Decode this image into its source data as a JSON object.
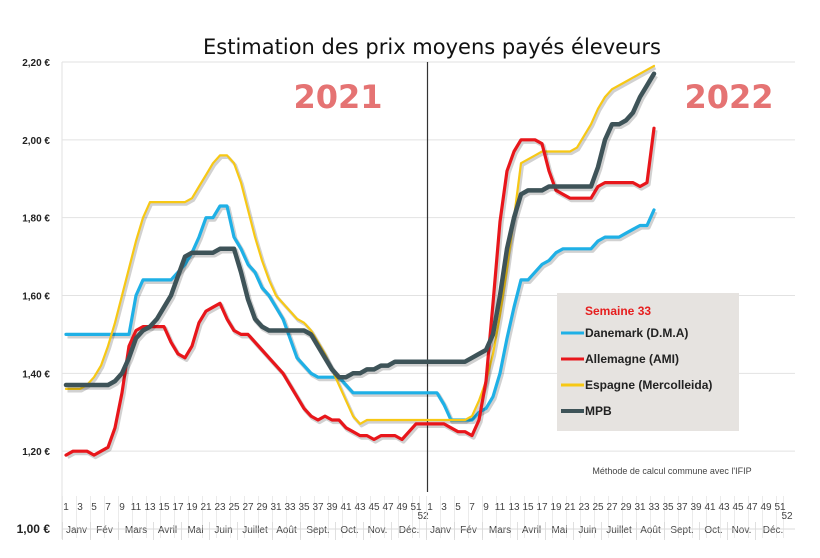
{
  "chart_data": {
    "type": "line",
    "title": "Estimation des prix moyens payés éleveurs",
    "xlabel": "",
    "ylabel": "",
    "ylim": [
      1.0,
      2.2
    ],
    "yticks": [
      "1,00 €",
      "1,20 €",
      "1,40 €",
      "1,60 €",
      "1,80 €",
      "2,00 €",
      "2,20 €"
    ],
    "ytick_values": [
      1.0,
      1.2,
      1.4,
      1.6,
      1.8,
      2.0,
      2.2
    ],
    "grid": true,
    "legend_position": "bottom-right",
    "legend_title": "Semaine 33",
    "year_labels": [
      "2021",
      "2022"
    ],
    "years": [
      {
        "label": "2021",
        "weeks": 52
      },
      {
        "label": "2022",
        "weeks": 52
      }
    ],
    "week_tick_labels": [
      "1",
      "3",
      "5",
      "7",
      "9",
      "11",
      "13",
      "15",
      "17",
      "19",
      "21",
      "23",
      "25",
      "27",
      "29",
      "31",
      "33",
      "35",
      "37",
      "39",
      "41",
      "43",
      "45",
      "47",
      "49",
      "51",
      "52"
    ],
    "months": [
      "Janv",
      "Fév",
      "Mars",
      "Avril",
      "Mai",
      "Juin",
      "Juillet",
      "Août",
      "Sept.",
      "Oct.",
      "Nov.",
      "Déc."
    ],
    "month_start_weeks": [
      1,
      5,
      9,
      14,
      18,
      22,
      26,
      31,
      35,
      40,
      44,
      48
    ],
    "note": "Méthode de calcul commune avec l'IFIP",
    "x_description": "Week index: 2021 weeks 1-52 followed by 2022 weeks 1-33",
    "series": [
      {
        "name": "Danemark (D.M.A)",
        "color": "#1fb0e6",
        "values_2021": [
          1.5,
          1.5,
          1.5,
          1.5,
          1.5,
          1.5,
          1.5,
          1.5,
          1.5,
          1.5,
          1.6,
          1.64,
          1.64,
          1.64,
          1.64,
          1.64,
          1.66,
          1.68,
          1.71,
          1.75,
          1.8,
          1.8,
          1.83,
          1.83,
          1.75,
          1.72,
          1.68,
          1.66,
          1.62,
          1.6,
          1.57,
          1.54,
          1.49,
          1.44,
          1.42,
          1.4,
          1.39,
          1.39,
          1.39,
          1.39,
          1.37,
          1.35,
          1.35,
          1.35,
          1.35,
          1.35,
          1.35,
          1.35,
          1.35,
          1.35,
          1.35,
          1.35
        ],
        "values_2022": [
          1.35,
          1.35,
          1.32,
          1.28,
          1.28,
          1.28,
          1.28,
          1.3,
          1.31,
          1.34,
          1.4,
          1.49,
          1.57,
          1.64,
          1.64,
          1.66,
          1.68,
          1.69,
          1.71,
          1.72,
          1.72,
          1.72,
          1.72,
          1.72,
          1.74,
          1.75,
          1.75,
          1.75,
          1.76,
          1.77,
          1.78,
          1.78,
          1.82
        ]
      },
      {
        "name": "Allemagne (AMI)",
        "color": "#e8161b",
        "values_2021": [
          1.19,
          1.2,
          1.2,
          1.2,
          1.19,
          1.2,
          1.21,
          1.26,
          1.35,
          1.47,
          1.51,
          1.52,
          1.52,
          1.52,
          1.52,
          1.48,
          1.45,
          1.44,
          1.47,
          1.53,
          1.56,
          1.57,
          1.58,
          1.54,
          1.51,
          1.5,
          1.5,
          1.48,
          1.46,
          1.44,
          1.42,
          1.4,
          1.37,
          1.34,
          1.31,
          1.29,
          1.28,
          1.29,
          1.28,
          1.28,
          1.26,
          1.25,
          1.24,
          1.24,
          1.23,
          1.24,
          1.24,
          1.24,
          1.23,
          1.25,
          1.27,
          1.27
        ],
        "values_2022": [
          1.27,
          1.27,
          1.27,
          1.26,
          1.25,
          1.25,
          1.24,
          1.28,
          1.38,
          1.58,
          1.79,
          1.92,
          1.97,
          2.0,
          2.0,
          2.0,
          1.99,
          1.92,
          1.87,
          1.86,
          1.85,
          1.85,
          1.85,
          1.85,
          1.88,
          1.89,
          1.89,
          1.89,
          1.89,
          1.89,
          1.88,
          1.89,
          2.03
        ]
      },
      {
        "name": "Espagne (Mercolleida)",
        "color": "#f7c815",
        "values_2021": [
          1.36,
          1.36,
          1.36,
          1.37,
          1.39,
          1.42,
          1.47,
          1.53,
          1.6,
          1.67,
          1.74,
          1.8,
          1.84,
          1.84,
          1.84,
          1.84,
          1.84,
          1.84,
          1.85,
          1.88,
          1.91,
          1.94,
          1.96,
          1.96,
          1.94,
          1.89,
          1.82,
          1.75,
          1.69,
          1.64,
          1.6,
          1.58,
          1.56,
          1.54,
          1.53,
          1.51,
          1.48,
          1.45,
          1.41,
          1.37,
          1.33,
          1.29,
          1.27,
          1.28,
          1.28,
          1.28,
          1.28,
          1.28,
          1.28,
          1.28,
          1.28,
          1.28
        ],
        "values_2022": [
          1.28,
          1.28,
          1.28,
          1.28,
          1.28,
          1.28,
          1.29,
          1.33,
          1.38,
          1.45,
          1.55,
          1.67,
          1.8,
          1.94,
          1.95,
          1.96,
          1.97,
          1.97,
          1.97,
          1.97,
          1.97,
          1.98,
          2.01,
          2.04,
          2.08,
          2.11,
          2.13,
          2.14,
          2.15,
          2.16,
          2.17,
          2.18,
          2.19
        ]
      },
      {
        "name": "MPB",
        "color": "#3e5358",
        "values_2021": [
          1.37,
          1.37,
          1.37,
          1.37,
          1.37,
          1.37,
          1.37,
          1.38,
          1.4,
          1.44,
          1.49,
          1.51,
          1.52,
          1.54,
          1.57,
          1.6,
          1.65,
          1.7,
          1.71,
          1.71,
          1.71,
          1.71,
          1.72,
          1.72,
          1.72,
          1.66,
          1.59,
          1.54,
          1.52,
          1.51,
          1.51,
          1.51,
          1.51,
          1.51,
          1.51,
          1.5,
          1.47,
          1.44,
          1.41,
          1.39,
          1.39,
          1.4,
          1.4,
          1.41,
          1.41,
          1.42,
          1.42,
          1.43,
          1.43,
          1.43,
          1.43,
          1.43
        ],
        "values_2022": [
          1.43,
          1.43,
          1.43,
          1.43,
          1.43,
          1.43,
          1.44,
          1.45,
          1.46,
          1.5,
          1.6,
          1.72,
          1.8,
          1.86,
          1.87,
          1.87,
          1.87,
          1.88,
          1.88,
          1.88,
          1.88,
          1.88,
          1.88,
          1.88,
          1.93,
          2.0,
          2.04,
          2.04,
          2.05,
          2.07,
          2.11,
          2.14,
          2.17
        ]
      }
    ]
  }
}
